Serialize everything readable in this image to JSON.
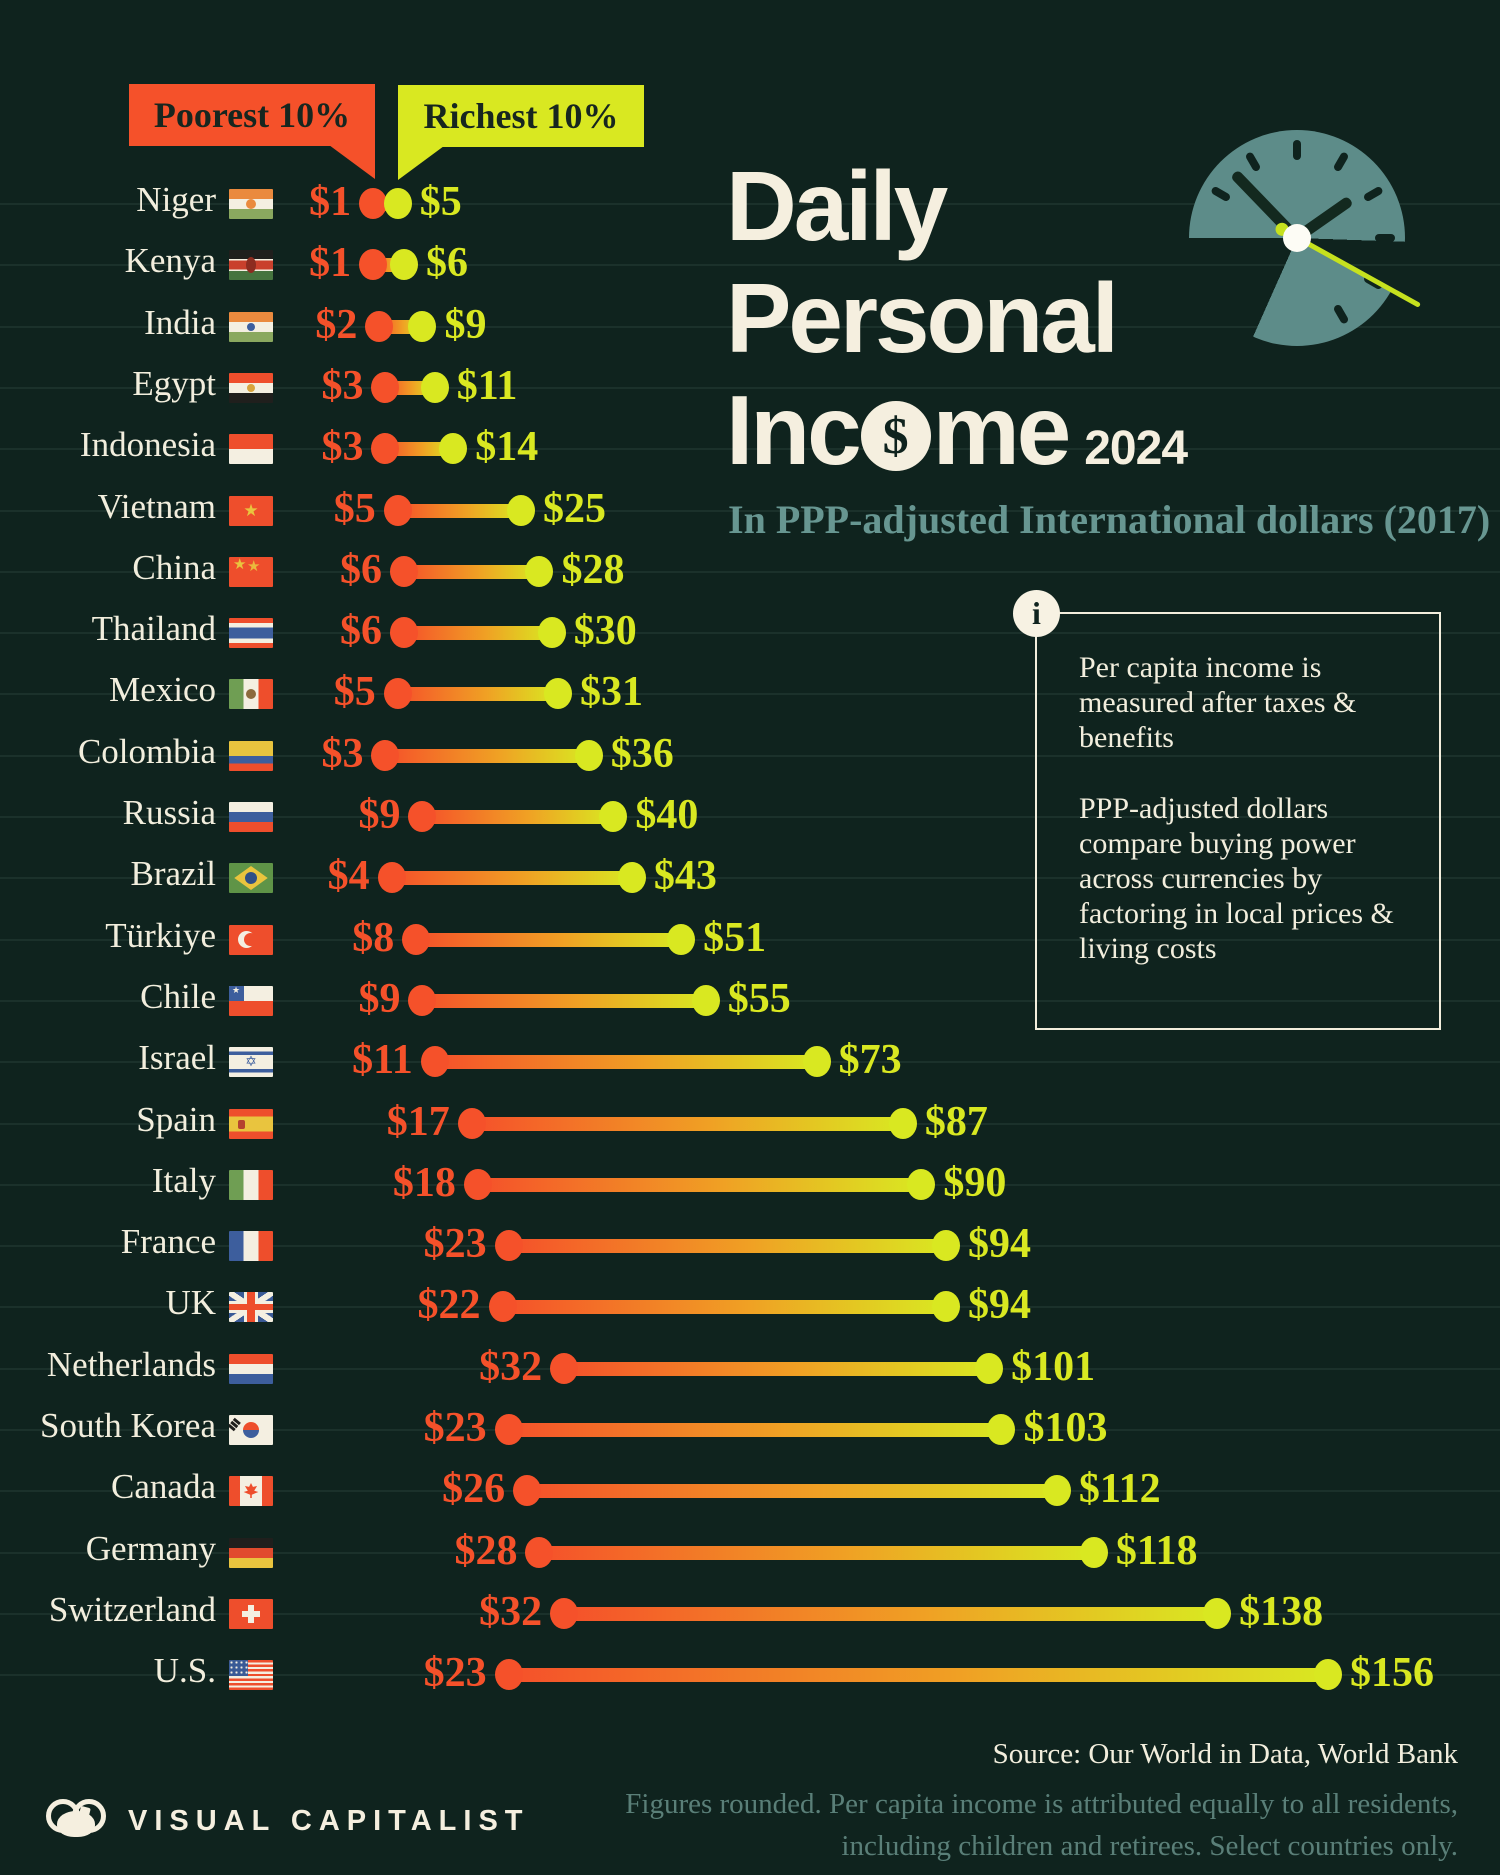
{
  "meta": {
    "background_color": "#0f231e",
    "accent_orange": "#f5512a",
    "accent_green": "#d9e821",
    "cream": "#f5efdf",
    "teal": "#679691"
  },
  "header": {
    "poorest_label": "Poorest 10%",
    "richest_label": "Richest 10%",
    "title_line1": "Daily",
    "title_line2": "Personal",
    "title_line3_pre": "Inc",
    "title_coin": "$",
    "title_line3_post": "me",
    "title_year": "2024",
    "subtitle": "In PPP-adjusted International dollars (2017)"
  },
  "infobox": {
    "icon": "i",
    "para1": "Per capita income is measured after taxes & benefits",
    "para2": "PPP-adjusted dollars compare buying power across currencies by factoring in local prices & living costs"
  },
  "chart_data": {
    "type": "dumbbell",
    "title": "Daily Personal Income 2024",
    "unit": "international dollars per day (PPP-adjusted, 2017)",
    "series": [
      {
        "name": "Poorest 10%",
        "color": "#f5512a"
      },
      {
        "name": "Richest 10%",
        "color": "#d9e821"
      }
    ],
    "xlim": [
      0,
      156
    ],
    "countries": [
      {
        "name": "Niger",
        "flag": "niger",
        "poorest": 1,
        "richest": 5,
        "poorest_label": "$1",
        "richest_label": "$5"
      },
      {
        "name": "Kenya",
        "flag": "kenya",
        "poorest": 1,
        "richest": 6,
        "poorest_label": "$1",
        "richest_label": "$6"
      },
      {
        "name": "India",
        "flag": "india",
        "poorest": 2,
        "richest": 9,
        "poorest_label": "$2",
        "richest_label": "$9"
      },
      {
        "name": "Egypt",
        "flag": "egypt",
        "poorest": 3,
        "richest": 11,
        "poorest_label": "$3",
        "richest_label": "$11"
      },
      {
        "name": "Indonesia",
        "flag": "indonesia",
        "poorest": 3,
        "richest": 14,
        "poorest_label": "$3",
        "richest_label": "$14"
      },
      {
        "name": "Vietnam",
        "flag": "vietnam",
        "poorest": 5,
        "richest": 25,
        "poorest_label": "$5",
        "richest_label": "$25"
      },
      {
        "name": "China",
        "flag": "china",
        "poorest": 6,
        "richest": 28,
        "poorest_label": "$6",
        "richest_label": "$28"
      },
      {
        "name": "Thailand",
        "flag": "thailand",
        "poorest": 6,
        "richest": 30,
        "poorest_label": "$6",
        "richest_label": "$30"
      },
      {
        "name": "Mexico",
        "flag": "mexico",
        "poorest": 5,
        "richest": 31,
        "poorest_label": "$5",
        "richest_label": "$31"
      },
      {
        "name": "Colombia",
        "flag": "colombia",
        "poorest": 3,
        "richest": 36,
        "poorest_label": "$3",
        "richest_label": "$36"
      },
      {
        "name": "Russia",
        "flag": "russia",
        "poorest": 9,
        "richest": 40,
        "poorest_label": "$9",
        "richest_label": "$40"
      },
      {
        "name": "Brazil",
        "flag": "brazil",
        "poorest": 4,
        "richest": 43,
        "poorest_label": "$4",
        "richest_label": "$43"
      },
      {
        "name": "Türkiye",
        "flag": "turkiye",
        "poorest": 8,
        "richest": 51,
        "poorest_label": "$8",
        "richest_label": "$51"
      },
      {
        "name": "Chile",
        "flag": "chile",
        "poorest": 9,
        "richest": 55,
        "poorest_label": "$9",
        "richest_label": "$55"
      },
      {
        "name": "Israel",
        "flag": "israel",
        "poorest": 11,
        "richest": 73,
        "poorest_label": "$11",
        "richest_label": "$73"
      },
      {
        "name": "Spain",
        "flag": "spain",
        "poorest": 17,
        "richest": 87,
        "poorest_label": "$17",
        "richest_label": "$87"
      },
      {
        "name": "Italy",
        "flag": "italy",
        "poorest": 18,
        "richest": 90,
        "poorest_label": "$18",
        "richest_label": "$90"
      },
      {
        "name": "France",
        "flag": "france",
        "poorest": 23,
        "richest": 94,
        "poorest_label": "$23",
        "richest_label": "$94"
      },
      {
        "name": "UK",
        "flag": "uk",
        "poorest": 22,
        "richest": 94,
        "poorest_label": "$22",
        "richest_label": "$94"
      },
      {
        "name": "Netherlands",
        "flag": "netherlands",
        "poorest": 32,
        "richest": 101,
        "poorest_label": "$32",
        "richest_label": "$101"
      },
      {
        "name": "South Korea",
        "flag": "southkorea",
        "poorest": 23,
        "richest": 103,
        "poorest_label": "$23",
        "richest_label": "$103"
      },
      {
        "name": "Canada",
        "flag": "canada",
        "poorest": 26,
        "richest": 112,
        "poorest_label": "$26",
        "richest_label": "$112"
      },
      {
        "name": "Germany",
        "flag": "germany",
        "poorest": 28,
        "richest": 118,
        "poorest_label": "$28",
        "richest_label": "$118"
      },
      {
        "name": "Switzerland",
        "flag": "switzerland",
        "poorest": 32,
        "richest": 138,
        "poorest_label": "$32",
        "richest_label": "$138"
      },
      {
        "name": "U.S.",
        "flag": "us",
        "poorest": 23,
        "richest": 156,
        "poorest_label": "$23",
        "richest_label": "$156"
      }
    ]
  },
  "footer": {
    "source": "Source: Our World in Data, World Bank",
    "note_line1": "Figures rounded. Per capita income is attributed equally to all residents,",
    "note_line2": "including children and retirees. Select countries only.",
    "logo_text": "VISUAL CAPITALIST"
  }
}
